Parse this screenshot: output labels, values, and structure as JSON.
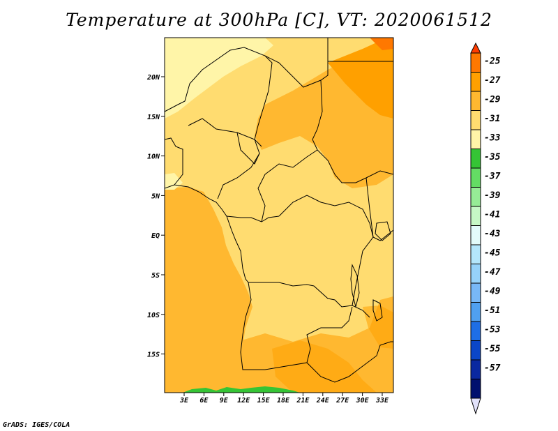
{
  "title": "Temperature at 300hPa [C], VT: 2020061512",
  "credit": "GrADS: IGES/COLA",
  "map": {
    "lon_labels": [
      "3E",
      "6E",
      "9E",
      "12E",
      "15E",
      "18E",
      "21E",
      "24E",
      "27E",
      "30E",
      "33E"
    ],
    "lat_labels": [
      "20N",
      "15N",
      "10N",
      "5N",
      "EQ",
      "5S",
      "10S",
      "15S"
    ]
  },
  "colorbar": {
    "labels": [
      "-25",
      "-27",
      "-29",
      "-31",
      "-33",
      "-35",
      "-37",
      "-39",
      "-41",
      "-43",
      "-45",
      "-47",
      "-49",
      "-51",
      "-53",
      "-55",
      "-57"
    ],
    "colors": [
      "#ff3c00",
      "#ff7800",
      "#ffa000",
      "#ffb830",
      "#ffdc70",
      "#fff5a8",
      "#35c435",
      "#64dc64",
      "#96ec96",
      "#c6f8c6",
      "#e3fbfb",
      "#b4e6fc",
      "#96d2fa",
      "#78b8f7",
      "#50a0f0",
      "#1e6ee6",
      "#0a46c8",
      "#0a28a0",
      "#00106e",
      "#e1e1fa"
    ]
  }
}
